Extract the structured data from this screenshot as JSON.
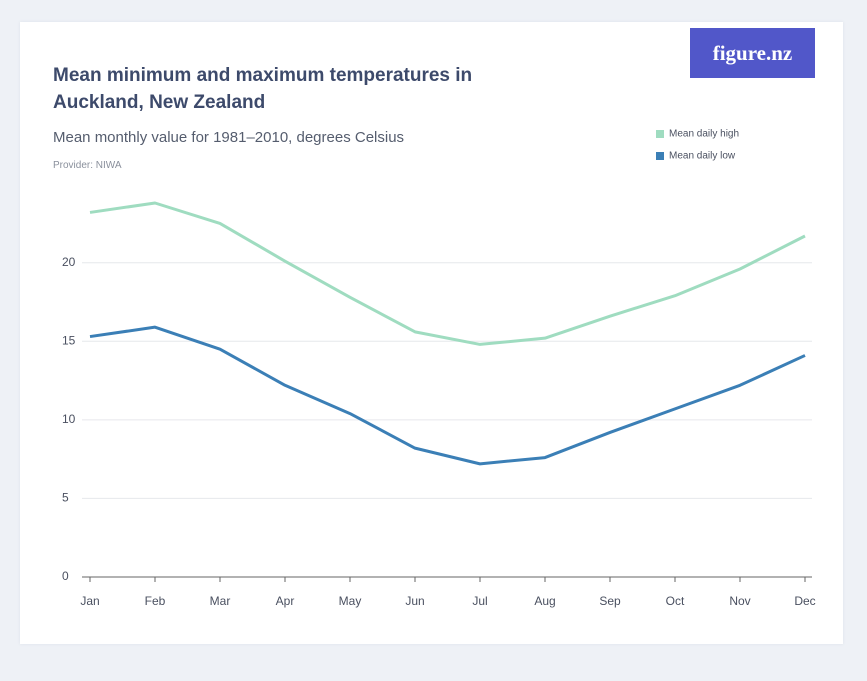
{
  "brand": "figure.nz",
  "chart_data": {
    "type": "line",
    "title": "Mean minimum and maximum temperatures in Auckland, New Zealand",
    "subtitle": "Mean monthly value for 1981–2010, degrees Celsius",
    "source": "Provider: NIWA",
    "categories": [
      "Jan",
      "Feb",
      "Mar",
      "Apr",
      "May",
      "Jun",
      "Jul",
      "Aug",
      "Sep",
      "Oct",
      "Nov",
      "Dec"
    ],
    "series": [
      {
        "name": "Mean daily high",
        "color": "#9fdcc0",
        "values": [
          23.2,
          23.8,
          22.5,
          20.1,
          17.8,
          15.6,
          14.8,
          15.2,
          16.6,
          17.9,
          19.6,
          21.7
        ]
      },
      {
        "name": "Mean daily low",
        "color": "#3b7fb6",
        "values": [
          15.3,
          15.9,
          14.5,
          12.2,
          10.4,
          8.2,
          7.2,
          7.6,
          9.2,
          10.7,
          12.2,
          14.1
        ]
      }
    ],
    "ylim": [
      0,
      24.5
    ],
    "yticks": [
      0,
      5,
      10,
      15,
      20
    ],
    "grid": true,
    "legend": "top-right"
  }
}
